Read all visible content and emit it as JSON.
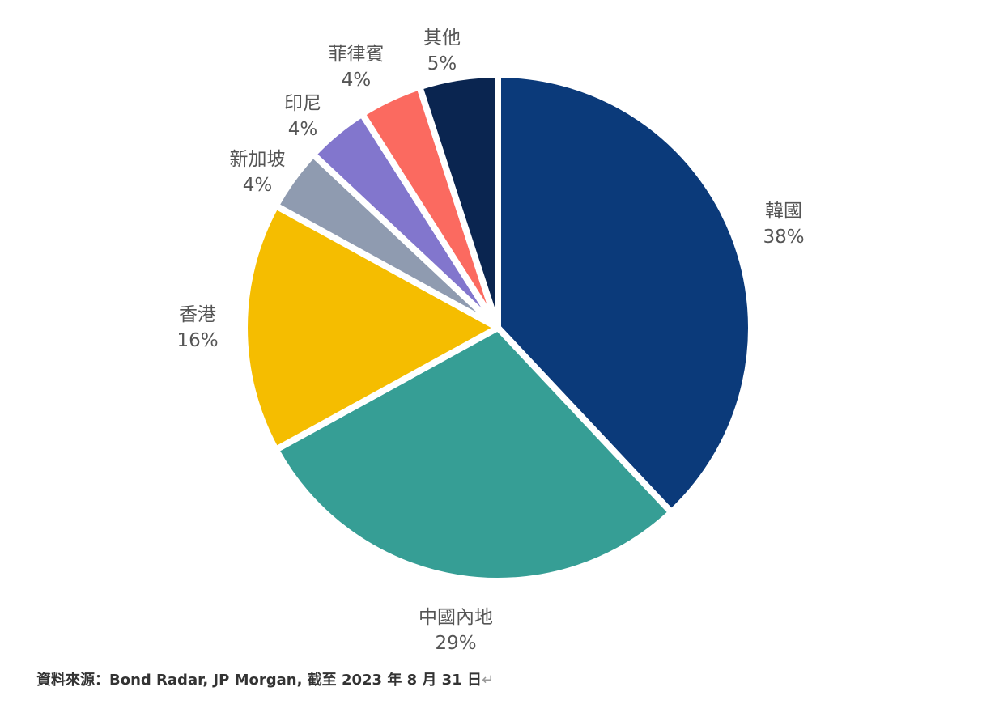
{
  "chart_data": {
    "type": "pie",
    "start_angle_deg": 0,
    "direction": "clockwise",
    "exploded": true,
    "slices": [
      {
        "label": "韓國",
        "value": 38,
        "value_label": "38%",
        "color": "#0b3a7a"
      },
      {
        "label": "中國內地",
        "value": 29,
        "value_label": "29%",
        "color": "#369e95"
      },
      {
        "label": "香港",
        "value": 16,
        "value_label": "16%",
        "color": "#f5bd00"
      },
      {
        "label": "新加坡",
        "value": 4,
        "value_label": "4%",
        "color": "#8f9bb0"
      },
      {
        "label": "印尼",
        "value": 4,
        "value_label": "4%",
        "color": "#8276cd"
      },
      {
        "label": "菲律賓",
        "value": 4,
        "value_label": "4%",
        "color": "#fb6a60"
      },
      {
        "label": "其他",
        "value": 5,
        "value_label": "5%",
        "color": "#0a2550"
      }
    ]
  },
  "source_note": "資料來源：Bond Radar, JP Morgan, 截至 2023 年 8 月 31 日",
  "return_mark": "↵"
}
